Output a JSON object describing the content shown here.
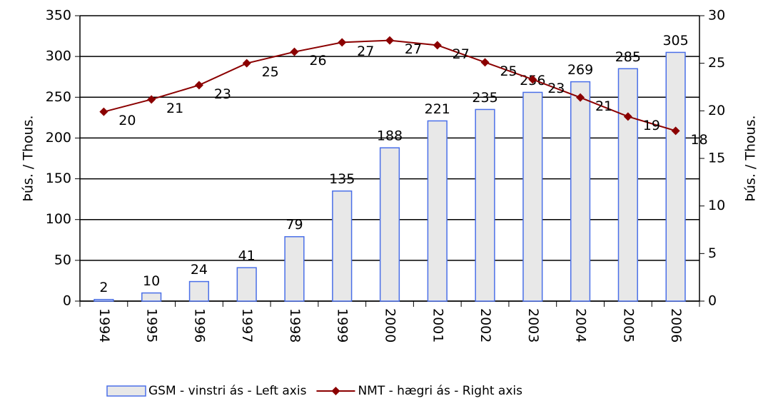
{
  "chart_data": {
    "type": "bar_line",
    "categories": [
      "1994",
      "1995",
      "1996",
      "1997",
      "1998",
      "1999",
      "2000",
      "2001",
      "2002",
      "2003",
      "2004",
      "2005",
      "2006"
    ],
    "series": [
      {
        "name": "GSM - vinstri ás - Left axis",
        "type": "bar",
        "color": "#e8e8e8",
        "edge_color": "#4a6fe8",
        "values": [
          2,
          10,
          24,
          41,
          79,
          135,
          188,
          221,
          235,
          256,
          269,
          285,
          305
        ]
      },
      {
        "name": "NMT - hægri ás - Right axis",
        "type": "line",
        "axis": "y2",
        "color": "#8b0000",
        "values": [
          19.9,
          21.2,
          22.7,
          25.0,
          26.2,
          27.2,
          27.4,
          26.9,
          25.1,
          23.3,
          21.4,
          19.4,
          17.9
        ],
        "value_labels": [
          "20",
          "21",
          "23",
          "25",
          "26",
          "27",
          "27",
          "27",
          "25",
          "23",
          "21",
          "19",
          "18"
        ]
      }
    ],
    "ylabel": "Þús. / Thous.",
    "y2label": "Þús. / Thous.",
    "ylim": [
      0,
      350
    ],
    "yticks": [
      0,
      50,
      100,
      150,
      200,
      250,
      300,
      350
    ],
    "y2lim": [
      0,
      30
    ],
    "y2ticks": [
      0,
      5,
      10,
      15,
      20,
      25,
      30
    ],
    "grid": true,
    "legend": "bottom"
  }
}
